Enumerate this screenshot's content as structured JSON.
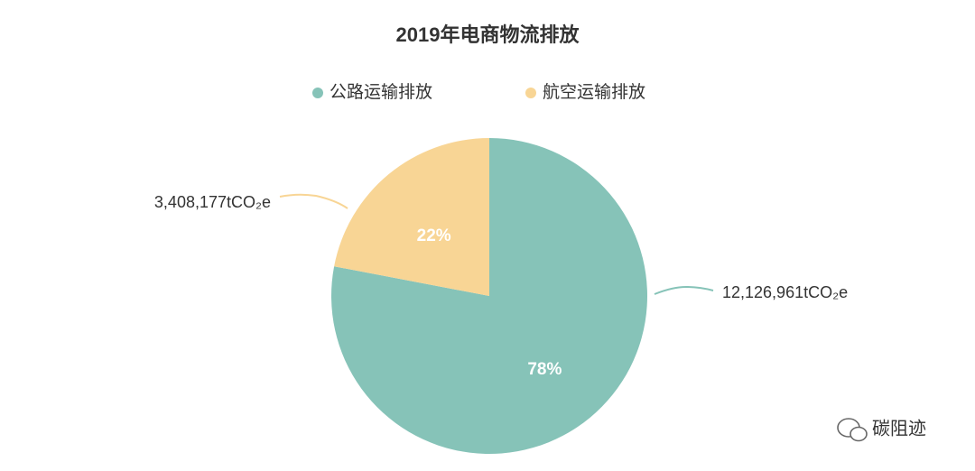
{
  "chart_data": {
    "type": "pie",
    "title": "2019年电商物流排放",
    "categories": [
      "公路运输排放",
      "航空运输排放"
    ],
    "values": [
      78,
      22
    ],
    "value_labels": [
      "78%",
      "22%"
    ],
    "amounts": [
      {
        "value": 12126961,
        "label": "12,126,961tCO₂e"
      },
      {
        "value": 3408177,
        "label": "3,408,177tCO₂e"
      }
    ],
    "colors": [
      "#86c3b8",
      "#f8d595"
    ],
    "legend": "top"
  },
  "watermark": "碳阻迹"
}
